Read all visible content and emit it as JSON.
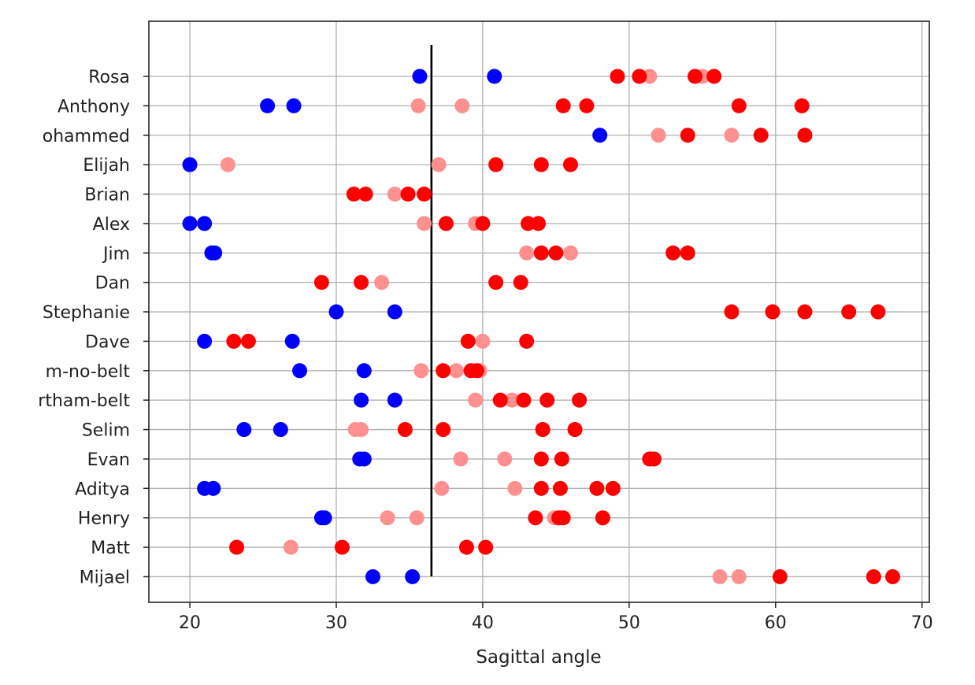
{
  "chart_data": {
    "type": "scatter",
    "title": "",
    "xlabel": "Sagittal angle",
    "ylabel": "",
    "xlim": [
      17.2,
      70.5
    ],
    "xticks": [
      20,
      30,
      40,
      50,
      60,
      70
    ],
    "grid": true,
    "reference_line_x": 36.5,
    "categories": [
      "Rosa",
      "Anthony",
      "Mohammed",
      "Elijah",
      "Brian",
      "Alex",
      "Jim",
      "Dan",
      "Stephanie",
      "Dave",
      "Pritham-no-belt",
      "Pritham-belt",
      "Selim",
      "Evan",
      "Aditya",
      "Henry",
      "Matt",
      "Mijael"
    ],
    "category_labels_visible": [
      "Rosa",
      "Anthony",
      "ohammed",
      "Elijah",
      "Brian",
      "Alex",
      "Jim",
      "Dan",
      "Stephanie",
      "Dave",
      "m-no-belt",
      "rtham-belt",
      "Selim",
      "Evan",
      "Aditya",
      "Henry",
      "Matt",
      "Mijael"
    ],
    "colors": {
      "blue": "#0000ff",
      "red": "#ff0000",
      "light_red": "#ff9090",
      "line": "#000000"
    },
    "series": [
      {
        "color": "blue",
        "points": [
          [
            "Rosa",
            35.7
          ],
          [
            "Rosa",
            40.8
          ],
          [
            "Anthony",
            25.3
          ],
          [
            "Anthony",
            27.1
          ],
          [
            "Mohammed",
            48.0
          ],
          [
            "Elijah",
            20.0
          ],
          [
            "Alex",
            20.0
          ],
          [
            "Alex",
            21.0
          ],
          [
            "Jim",
            21.5
          ],
          [
            "Jim",
            21.7
          ],
          [
            "Stephanie",
            30.0
          ],
          [
            "Stephanie",
            34.0
          ],
          [
            "Dave",
            21.0
          ],
          [
            "Dave",
            27.0
          ],
          [
            "Pritham-no-belt",
            27.5
          ],
          [
            "Pritham-no-belt",
            31.9
          ],
          [
            "Pritham-belt",
            31.7
          ],
          [
            "Pritham-belt",
            34.0
          ],
          [
            "Selim",
            23.7
          ],
          [
            "Selim",
            26.2
          ],
          [
            "Evan",
            31.6
          ],
          [
            "Evan",
            31.9
          ],
          [
            "Aditya",
            21.0
          ],
          [
            "Aditya",
            21.6
          ],
          [
            "Henry",
            29.0
          ],
          [
            "Henry",
            29.2
          ],
          [
            "Mijael",
            32.5
          ],
          [
            "Mijael",
            35.2
          ]
        ]
      },
      {
        "color": "red",
        "points": [
          [
            "Rosa",
            49.2
          ],
          [
            "Rosa",
            50.7
          ],
          [
            "Rosa",
            54.5
          ],
          [
            "Rosa",
            55.8
          ],
          [
            "Anthony",
            45.5
          ],
          [
            "Anthony",
            47.1
          ],
          [
            "Anthony",
            57.5
          ],
          [
            "Anthony",
            61.8
          ],
          [
            "Mohammed",
            54.0
          ],
          [
            "Mohammed",
            59.0
          ],
          [
            "Mohammed",
            62.0
          ],
          [
            "Elijah",
            40.9
          ],
          [
            "Elijah",
            44.0
          ],
          [
            "Elijah",
            46.0
          ],
          [
            "Brian",
            31.2
          ],
          [
            "Brian",
            32.0
          ],
          [
            "Brian",
            34.9
          ],
          [
            "Brian",
            36.0
          ],
          [
            "Alex",
            37.5
          ],
          [
            "Alex",
            40.0
          ],
          [
            "Alex",
            43.1
          ],
          [
            "Alex",
            43.8
          ],
          [
            "Jim",
            44.0
          ],
          [
            "Jim",
            45.0
          ],
          [
            "Jim",
            53.0
          ],
          [
            "Jim",
            54.0
          ],
          [
            "Dan",
            29.0
          ],
          [
            "Dan",
            31.7
          ],
          [
            "Dan",
            40.9
          ],
          [
            "Dan",
            42.6
          ],
          [
            "Stephanie",
            57.0
          ],
          [
            "Stephanie",
            59.8
          ],
          [
            "Stephanie",
            62.0
          ],
          [
            "Stephanie",
            65.0
          ],
          [
            "Stephanie",
            67.0
          ],
          [
            "Dave",
            23.0
          ],
          [
            "Dave",
            24.0
          ],
          [
            "Dave",
            39.0
          ],
          [
            "Dave",
            43.0
          ],
          [
            "Pritham-no-belt",
            37.3
          ],
          [
            "Pritham-no-belt",
            39.2
          ],
          [
            "Pritham-no-belt",
            39.6
          ],
          [
            "Pritham-belt",
            41.2
          ],
          [
            "Pritham-belt",
            42.8
          ],
          [
            "Pritham-belt",
            44.4
          ],
          [
            "Pritham-belt",
            46.6
          ],
          [
            "Selim",
            34.7
          ],
          [
            "Selim",
            37.3
          ],
          [
            "Selim",
            44.1
          ],
          [
            "Selim",
            46.3
          ],
          [
            "Evan",
            44.0
          ],
          [
            "Evan",
            45.4
          ],
          [
            "Evan",
            51.4
          ],
          [
            "Evan",
            51.7
          ],
          [
            "Aditya",
            44.0
          ],
          [
            "Aditya",
            45.3
          ],
          [
            "Aditya",
            47.8
          ],
          [
            "Aditya",
            48.9
          ],
          [
            "Henry",
            43.6
          ],
          [
            "Henry",
            45.2
          ],
          [
            "Henry",
            45.5
          ],
          [
            "Henry",
            48.2
          ],
          [
            "Matt",
            23.2
          ],
          [
            "Matt",
            30.4
          ],
          [
            "Matt",
            38.9
          ],
          [
            "Matt",
            40.2
          ],
          [
            "Mijael",
            60.3
          ],
          [
            "Mijael",
            66.7
          ],
          [
            "Mijael",
            68.0
          ]
        ]
      },
      {
        "color": "light_red",
        "points": [
          [
            "Rosa",
            51.4
          ],
          [
            "Rosa",
            55.0
          ],
          [
            "Anthony",
            35.6
          ],
          [
            "Anthony",
            38.6
          ],
          [
            "Mohammed",
            52.0
          ],
          [
            "Mohammed",
            57.0
          ],
          [
            "Elijah",
            22.6
          ],
          [
            "Elijah",
            37.0
          ],
          [
            "Brian",
            34.0
          ],
          [
            "Alex",
            36.0
          ],
          [
            "Alex",
            39.5
          ],
          [
            "Jim",
            43.0
          ],
          [
            "Jim",
            46.0
          ],
          [
            "Dan",
            33.1
          ],
          [
            "Stephanie",
            59.8
          ],
          [
            "Dave",
            40.0
          ],
          [
            "Pritham-no-belt",
            35.8
          ],
          [
            "Pritham-no-belt",
            38.2
          ],
          [
            "Pritham-no-belt",
            39.8
          ],
          [
            "Pritham-belt",
            39.5
          ],
          [
            "Pritham-belt",
            42.0
          ],
          [
            "Selim",
            31.3
          ],
          [
            "Selim",
            31.7
          ],
          [
            "Evan",
            38.5
          ],
          [
            "Evan",
            41.5
          ],
          [
            "Aditya",
            37.2
          ],
          [
            "Aditya",
            42.2
          ],
          [
            "Henry",
            33.5
          ],
          [
            "Henry",
            35.5
          ],
          [
            "Henry",
            44.9
          ],
          [
            "Matt",
            26.9
          ],
          [
            "Mijael",
            56.2
          ],
          [
            "Mijael",
            57.5
          ]
        ]
      }
    ]
  }
}
